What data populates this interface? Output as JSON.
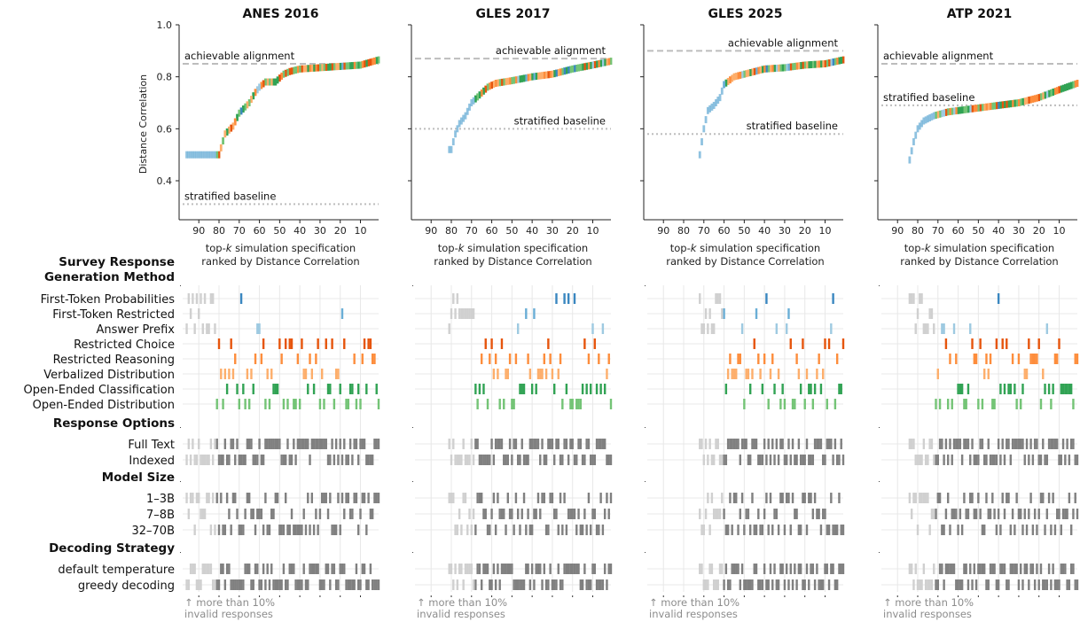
{
  "figure": {
    "ylabel": "Distance Correlation",
    "xlabel_line1_pre": "top-",
    "xlabel_line1_k": "k",
    "xlabel_line1_post": " simulation specification",
    "xlabel_line2": "ranked by Distance Correlation",
    "invalid_note_line1": "↑ more than 10%",
    "invalid_note_line2": "invalid responses",
    "ref_labels": {
      "achievable": "achievable alignment",
      "stratified": "stratified baseline"
    }
  },
  "colors": {
    "first_token_probabilities": "#3a87c0",
    "first_token_restricted": "#6aaed6",
    "answer_prefix": "#9ecae1",
    "restricted_choice": "#e6550d",
    "restricted_reasoning": "#fd8d3c",
    "verbalized_distribution": "#fdae6b",
    "open_ended_classification": "#31a354",
    "open_ended_distribution": "#74c476",
    "active_marker": "#808080",
    "invalid_marker": "#d0d0d0",
    "reference_line": "#bdbdbd",
    "grid": "#e8e8e8"
  },
  "groups": [
    {
      "title_line1": "Survey Response",
      "title_line2": "Generation Method",
      "rows": [
        "First-Token Probabilities",
        "First-Token Restricted",
        "Answer Prefix",
        "Restricted Choice",
        "Restricted Reasoning",
        "Verbalized Distribution",
        "Open-Ended Classification",
        "Open-Ended Distribution"
      ]
    },
    {
      "title_line1": "Response Options",
      "title_line2": "",
      "rows": [
        "Full Text",
        "Indexed"
      ]
    },
    {
      "title_line1": "Model Size",
      "title_line2": "",
      "rows": [
        "1–3B",
        "7–8B",
        "32–70B"
      ]
    },
    {
      "title_line1": "Decoding Strategy",
      "title_line2": "",
      "rows": [
        "default temperature",
        "greedy decoding"
      ]
    }
  ],
  "chart_data": [
    {
      "type": "line",
      "title": "ANES 2016",
      "n_specs": 96,
      "xlim": [
        98,
        1
      ],
      "ylim": [
        0.25,
        1.0
      ],
      "xticks": [
        90,
        80,
        70,
        60,
        50,
        40,
        30,
        20,
        10
      ],
      "yticks": [
        0.4,
        0.6,
        0.8,
        1.0
      ],
      "achievable_alignment": 0.85,
      "stratified_baseline": 0.31,
      "curve_anchors": [
        [
          80,
          0.5
        ],
        [
          77,
          0.58
        ],
        [
          73,
          0.61
        ],
        [
          70,
          0.66
        ],
        [
          65,
          0.7
        ],
        [
          62,
          0.74
        ],
        [
          60,
          0.76
        ],
        [
          57,
          0.78
        ],
        [
          52,
          0.78
        ],
        [
          48,
          0.81
        ],
        [
          45,
          0.82
        ],
        [
          40,
          0.83
        ],
        [
          30,
          0.835
        ],
        [
          20,
          0.84
        ],
        [
          10,
          0.845
        ],
        [
          1,
          0.865
        ]
      ]
    },
    {
      "type": "line",
      "title": "GLES 2017",
      "n_specs": 81,
      "xlim": [
        98,
        1
      ],
      "ylim": [
        0.25,
        1.0
      ],
      "xticks": [
        90,
        80,
        70,
        60,
        50,
        40,
        30,
        20,
        10
      ],
      "yticks": [
        0.4,
        0.6,
        0.8,
        1.0
      ],
      "achievable_alignment": 0.87,
      "stratified_baseline": 0.6,
      "curve_anchors": [
        [
          80,
          0.52
        ],
        [
          78,
          0.58
        ],
        [
          76,
          0.62
        ],
        [
          73,
          0.65
        ],
        [
          70,
          0.7
        ],
        [
          66,
          0.73
        ],
        [
          62,
          0.76
        ],
        [
          58,
          0.775
        ],
        [
          50,
          0.785
        ],
        [
          40,
          0.8
        ],
        [
          30,
          0.81
        ],
        [
          20,
          0.83
        ],
        [
          10,
          0.845
        ],
        [
          1,
          0.86
        ]
      ]
    },
    {
      "type": "line",
      "title": "GLES 2025",
      "n_specs": 72,
      "xlim": [
        98,
        1
      ],
      "ylim": [
        0.25,
        1.0
      ],
      "xticks": [
        90,
        80,
        70,
        60,
        50,
        40,
        30,
        20,
        10
      ],
      "yticks": [
        0.4,
        0.6,
        0.8,
        1.0
      ],
      "achievable_alignment": 0.9,
      "stratified_baseline": 0.58,
      "curve_anchors": [
        [
          72,
          0.5
        ],
        [
          70,
          0.6
        ],
        [
          68,
          0.67
        ],
        [
          65,
          0.69
        ],
        [
          62,
          0.72
        ],
        [
          60,
          0.77
        ],
        [
          55,
          0.8
        ],
        [
          50,
          0.81
        ],
        [
          45,
          0.82
        ],
        [
          40,
          0.83
        ],
        [
          30,
          0.835
        ],
        [
          20,
          0.845
        ],
        [
          10,
          0.85
        ],
        [
          1,
          0.865
        ]
      ]
    },
    {
      "type": "line",
      "title": "ATP 2021",
      "n_specs": 84,
      "xlim": [
        98,
        1
      ],
      "ylim": [
        0.25,
        1.0
      ],
      "xticks": [
        90,
        80,
        70,
        60,
        50,
        40,
        30,
        20,
        10
      ],
      "yticks": [
        0.4,
        0.6,
        0.8,
        1.0
      ],
      "achievable_alignment": 0.85,
      "stratified_baseline": 0.69,
      "curve_anchors": [
        [
          84,
          0.48
        ],
        [
          82,
          0.55
        ],
        [
          80,
          0.6
        ],
        [
          77,
          0.63
        ],
        [
          72,
          0.65
        ],
        [
          65,
          0.665
        ],
        [
          55,
          0.675
        ],
        [
          45,
          0.685
        ],
        [
          40,
          0.69
        ],
        [
          30,
          0.7
        ],
        [
          20,
          0.72
        ],
        [
          10,
          0.75
        ],
        [
          1,
          0.775
        ]
      ]
    }
  ]
}
